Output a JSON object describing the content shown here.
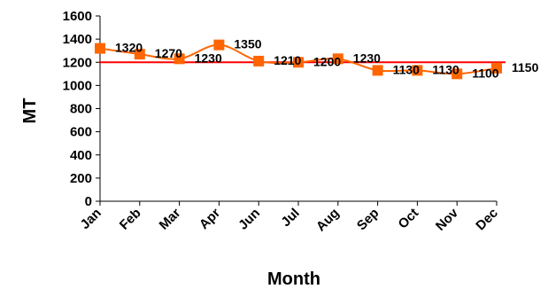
{
  "chart_data": {
    "type": "line",
    "categories": [
      "Jan",
      "Feb",
      "Mar",
      "Apr",
      "Jun",
      "Jul",
      "Aug",
      "Sep",
      "Oct",
      "Nov",
      "Dec"
    ],
    "series": [
      {
        "values": [
          1320,
          1270,
          1230,
          1350,
          1210,
          1200,
          1230,
          1130,
          1130,
          1100,
          1150
        ],
        "color": "#ff6600"
      }
    ],
    "reference_line": {
      "value": 1200,
      "color": "#ff0000"
    },
    "xlabel": "Month",
    "ylabel": "MT",
    "ylim": [
      0,
      1600
    ],
    "yticks": [
      0,
      200,
      400,
      600,
      800,
      1000,
      1200,
      1400,
      1600
    ],
    "grid": false,
    "legend": "none",
    "marker": "square"
  }
}
